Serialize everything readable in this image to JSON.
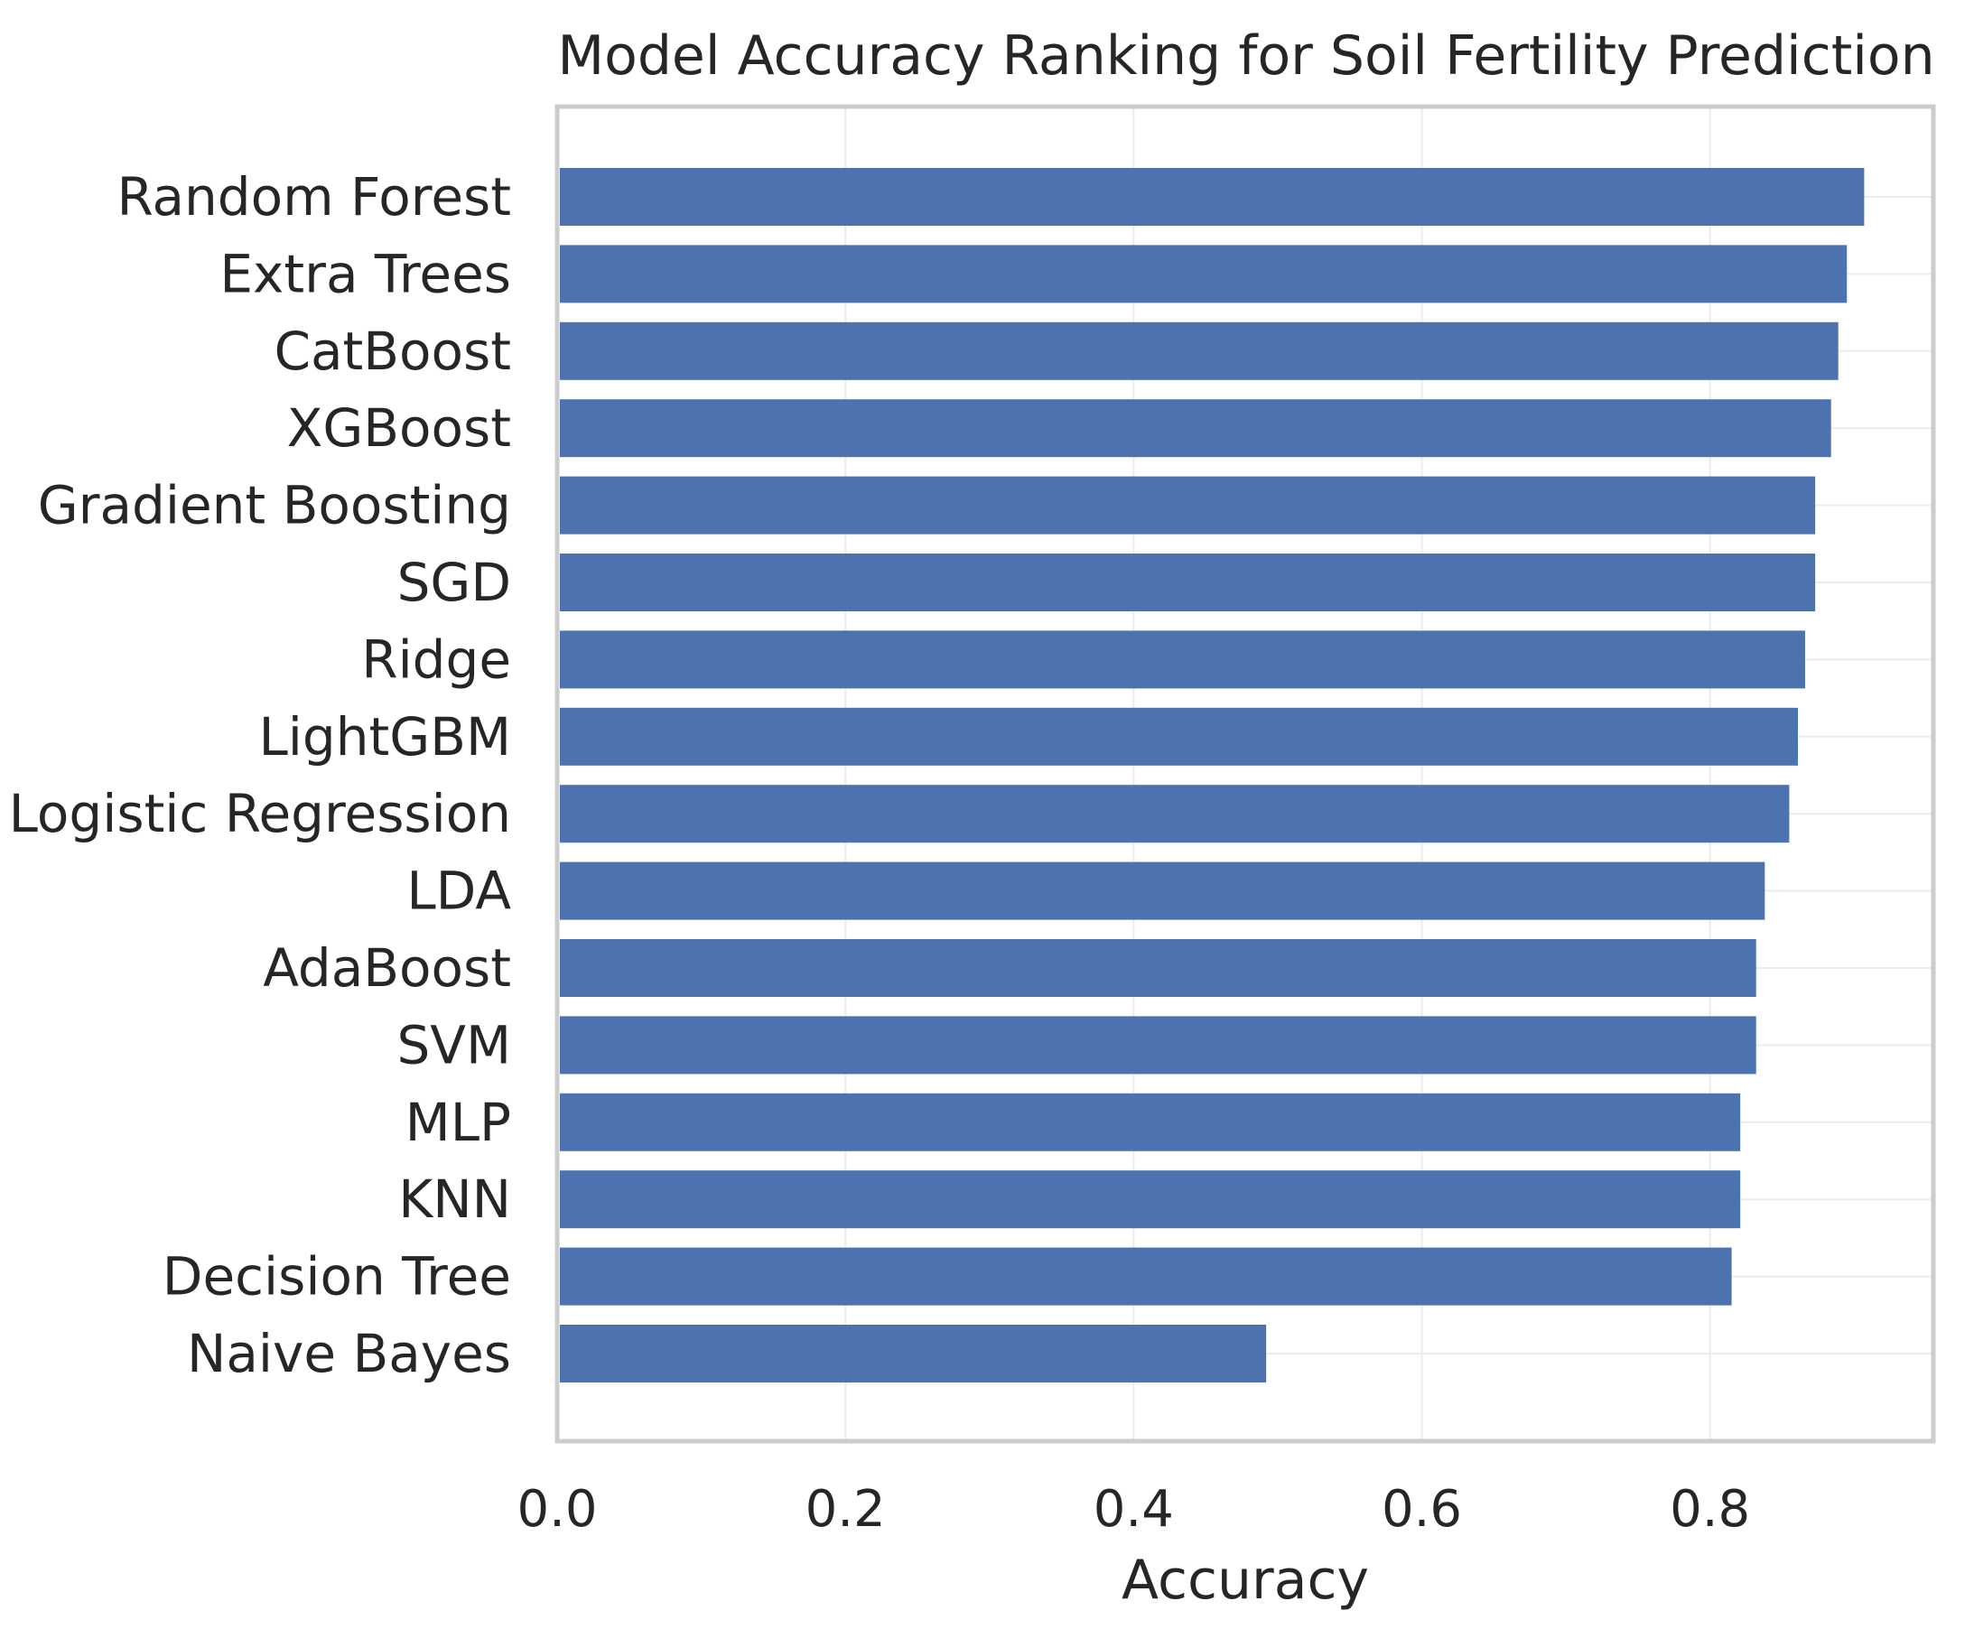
{
  "chart_data": {
    "type": "bar",
    "orientation": "horizontal",
    "title": "Model Accuracy Ranking for Soil Fertility Prediction",
    "xlabel": "Accuracy",
    "ylabel": "",
    "xlim": [
      0,
      0.955
    ],
    "xticks": [
      "0.0",
      "0.2",
      "0.4",
      "0.6",
      "0.8"
    ],
    "xtick_values": [
      0,
      0.2,
      0.4,
      0.6,
      0.8
    ],
    "grid": true,
    "bar_color": "#4c72b0",
    "categories": [
      "Random Forest",
      "Extra Trees",
      "CatBoost",
      "XGBoost",
      "Gradient Boosting",
      "SGD",
      "Ridge",
      "LightGBM",
      "Logistic Regression",
      "LDA",
      "AdaBoost",
      "SVM",
      "MLP",
      "KNN",
      "Decision Tree",
      "Naive Bayes"
    ],
    "values": [
      0.907,
      0.895,
      0.889,
      0.884,
      0.873,
      0.873,
      0.866,
      0.861,
      0.855,
      0.838,
      0.832,
      0.832,
      0.821,
      0.821,
      0.815,
      0.492
    ]
  }
}
